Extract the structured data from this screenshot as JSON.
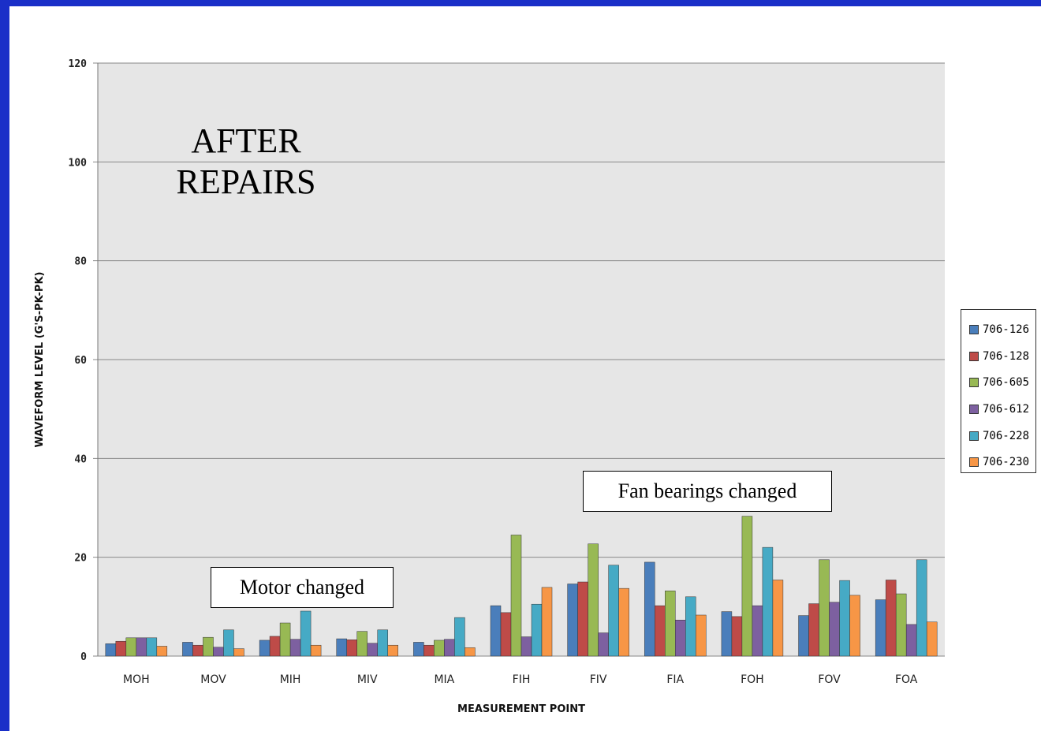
{
  "slide": {
    "title_lines": [
      "AFTER",
      "REPAIRS"
    ],
    "callouts": {
      "motor": "Motor changed",
      "fan": "Fan bearings changed"
    }
  },
  "chart_data": {
    "type": "bar",
    "title": "",
    "xlabel": "MEASUREMENT POINT",
    "ylabel": "WAVEFORM LEVEL (G'S-PK-PK)",
    "ylim": [
      0,
      120
    ],
    "yticks": [
      "0",
      "20",
      "40",
      "60",
      "80",
      "100",
      "120"
    ],
    "grid": true,
    "legend_position": "right",
    "plot_background": "#e6e6e6",
    "categories": [
      "MOH",
      "MOV",
      "MIH",
      "MIV",
      "MIA",
      "FIH",
      "FIV",
      "FIA",
      "FOH",
      "FOV",
      "FOA"
    ],
    "series": [
      {
        "name": "706-126",
        "color": "#4a7ebb",
        "values": [
          2.5,
          2.8,
          3.2,
          3.5,
          2.8,
          10.2,
          14.6,
          19.0,
          9.0,
          8.2,
          11.4
        ]
      },
      {
        "name": "706-128",
        "color": "#be4b48",
        "values": [
          3.0,
          2.2,
          4.0,
          3.3,
          2.2,
          8.8,
          15.0,
          10.2,
          8.0,
          10.6,
          15.4
        ]
      },
      {
        "name": "706-605",
        "color": "#98b954",
        "values": [
          3.7,
          3.8,
          6.7,
          5.0,
          3.2,
          24.5,
          22.7,
          13.2,
          28.3,
          19.5,
          12.6
        ]
      },
      {
        "name": "706-612",
        "color": "#7d60a0",
        "values": [
          3.7,
          1.8,
          3.4,
          2.6,
          3.4,
          3.9,
          4.7,
          7.3,
          10.2,
          10.9,
          6.4
        ]
      },
      {
        "name": "706-228",
        "color": "#46aac5",
        "values": [
          3.7,
          5.3,
          9.1,
          5.3,
          7.8,
          10.5,
          18.4,
          12.0,
          22.0,
          15.3,
          19.5
        ]
      },
      {
        "name": "706-230",
        "color": "#f79646",
        "values": [
          2.0,
          1.5,
          2.2,
          2.2,
          1.7,
          13.9,
          13.7,
          8.3,
          15.4,
          12.3,
          6.9
        ]
      }
    ]
  }
}
